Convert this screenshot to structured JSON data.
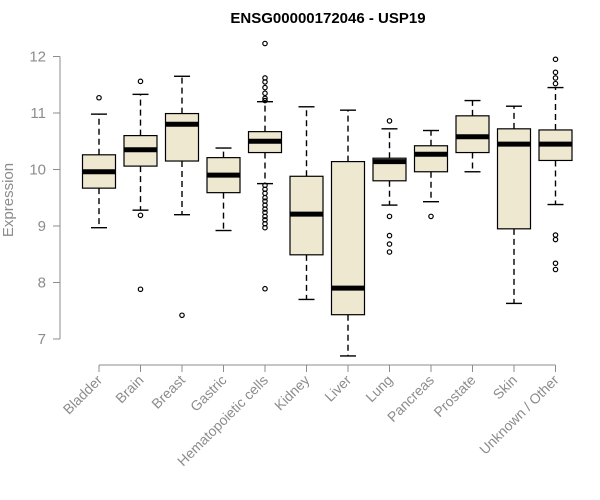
{
  "chart_data": {
    "type": "boxplot",
    "title": "ENSG00000172046 - USP19",
    "xlabel": "",
    "ylabel": "Expression",
    "ylim": [
      6.6,
      12.3
    ],
    "yticks": [
      7,
      8,
      9,
      10,
      11,
      12
    ],
    "grid": false,
    "legend": "none",
    "box_fill": "#efe8d1",
    "line_color": "#000000",
    "axis_color": "#8c8c8c",
    "categories": [
      "Bladder",
      "Brain",
      "Breast",
      "Gastric",
      "Hematopoietic cells",
      "Kidney",
      "Liver",
      "Lung",
      "Pancreas",
      "Prostate",
      "Skin",
      "Unknown / Other"
    ],
    "boxes": [
      {
        "label": "Bladder",
        "whisker_low": 8.97,
        "q1": 9.67,
        "median": 9.96,
        "q3": 10.26,
        "whisker_high": 10.98,
        "outliers": [
          11.27
        ]
      },
      {
        "label": "Brain",
        "whisker_low": 9.28,
        "q1": 10.06,
        "median": 10.35,
        "q3": 10.6,
        "whisker_high": 11.33,
        "outliers": [
          11.56,
          9.19,
          7.88
        ]
      },
      {
        "label": "Breast",
        "whisker_low": 9.2,
        "q1": 10.15,
        "median": 10.8,
        "q3": 10.99,
        "whisker_high": 11.65,
        "outliers": [
          7.42
        ]
      },
      {
        "label": "Gastric",
        "whisker_low": 8.92,
        "q1": 9.59,
        "median": 9.9,
        "q3": 10.21,
        "whisker_high": 10.38,
        "outliers": []
      },
      {
        "label": "Hematopoietic cells",
        "whisker_low": 9.75,
        "q1": 10.3,
        "median": 10.5,
        "q3": 10.67,
        "whisker_high": 11.2,
        "outliers": [
          12.23,
          11.62,
          11.55,
          11.45,
          11.35,
          11.26,
          11.22,
          9.72,
          9.65,
          9.58,
          9.5,
          9.44,
          9.37,
          9.3,
          9.24,
          9.17,
          9.11,
          9.04,
          8.97,
          7.89
        ]
      },
      {
        "label": "Kidney",
        "whisker_low": 7.7,
        "q1": 8.49,
        "median": 9.21,
        "q3": 9.88,
        "whisker_high": 11.11,
        "outliers": []
      },
      {
        "label": "Liver",
        "whisker_low": 6.7,
        "q1": 7.43,
        "median": 7.9,
        "q3": 10.14,
        "whisker_high": 11.05,
        "outliers": []
      },
      {
        "label": "Lung",
        "whisker_low": 9.37,
        "q1": 9.8,
        "median": 10.14,
        "q3": 10.2,
        "whisker_high": 10.72,
        "outliers": [
          10.86,
          9.17,
          8.83,
          8.68,
          8.54
        ]
      },
      {
        "label": "Pancreas",
        "whisker_low": 9.43,
        "q1": 9.96,
        "median": 10.27,
        "q3": 10.42,
        "whisker_high": 10.69,
        "outliers": [
          9.17
        ]
      },
      {
        "label": "Prostate",
        "whisker_low": 9.96,
        "q1": 10.3,
        "median": 10.58,
        "q3": 10.95,
        "whisker_high": 11.22,
        "outliers": []
      },
      {
        "label": "Skin",
        "whisker_low": 7.63,
        "q1": 8.95,
        "median": 10.45,
        "q3": 10.72,
        "whisker_high": 11.12,
        "outliers": []
      },
      {
        "label": "Unknown / Other",
        "whisker_low": 9.38,
        "q1": 10.16,
        "median": 10.45,
        "q3": 10.7,
        "whisker_high": 11.45,
        "outliers": [
          11.95,
          11.72,
          11.62,
          11.52,
          8.84,
          8.76,
          8.34,
          8.23
        ]
      }
    ]
  }
}
